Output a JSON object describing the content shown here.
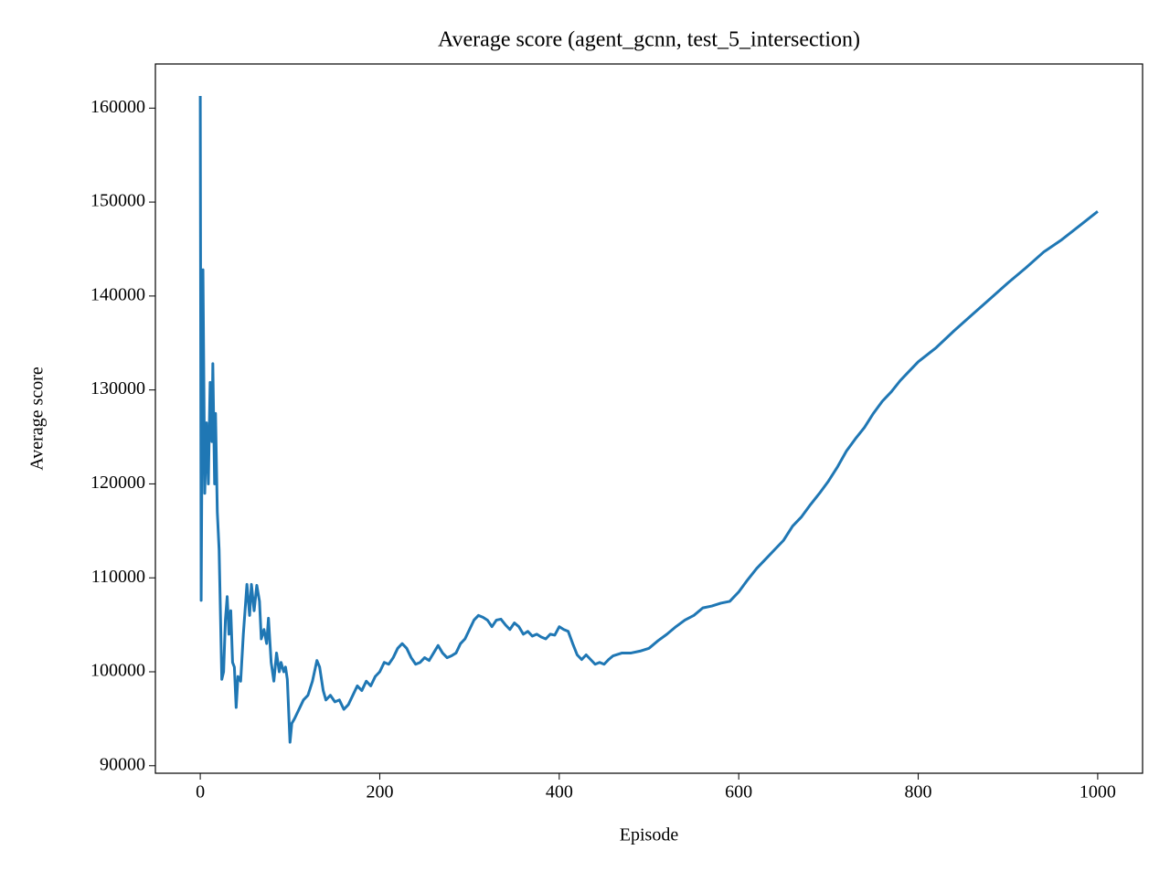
{
  "chart_data": {
    "type": "line",
    "title": "Average score (agent_gcnn, test_5_intersection)",
    "x_label": "Episode",
    "y_label": "Average score",
    "xlim": [
      -50,
      1050
    ],
    "ylim": [
      89200,
      164700
    ],
    "xticks": [
      0,
      200,
      400,
      600,
      800,
      1000
    ],
    "yticks": [
      90000,
      100000,
      110000,
      120000,
      130000,
      140000,
      150000,
      160000
    ],
    "series": [
      {
        "color": "#1f77b4",
        "x": [
          0,
          1,
          3,
          5,
          7,
          9,
          11,
          13,
          14,
          16,
          17,
          19,
          21,
          24,
          26,
          28,
          30,
          32,
          34,
          36,
          38,
          40,
          42,
          45,
          48,
          52,
          55,
          57,
          60,
          63,
          66,
          68,
          71,
          74,
          76,
          79,
          82,
          85,
          88,
          90,
          93,
          95,
          97,
          100,
          102,
          105,
          110,
          115,
          120,
          125,
          130,
          133,
          137,
          140,
          145,
          150,
          155,
          160,
          165,
          170,
          175,
          180,
          185,
          190,
          195,
          200,
          205,
          210,
          215,
          220,
          225,
          230,
          235,
          240,
          245,
          250,
          255,
          260,
          265,
          270,
          275,
          280,
          285,
          290,
          295,
          300,
          305,
          310,
          315,
          320,
          325,
          330,
          335,
          340,
          345,
          350,
          355,
          360,
          365,
          370,
          375,
          380,
          385,
          390,
          395,
          400,
          405,
          410,
          415,
          420,
          425,
          430,
          435,
          440,
          445,
          450,
          455,
          460,
          470,
          480,
          490,
          500,
          510,
          520,
          530,
          540,
          550,
          560,
          570,
          580,
          590,
          600,
          610,
          620,
          630,
          640,
          650,
          660,
          670,
          680,
          690,
          700,
          710,
          720,
          730,
          740,
          750,
          760,
          770,
          780,
          790,
          800,
          820,
          840,
          860,
          880,
          900,
          920,
          940,
          960,
          980,
          1000
        ],
        "values": [
          161300,
          107600,
          142800,
          119000,
          126500,
          120000,
          130800,
          124500,
          132800,
          120000,
          127500,
          117000,
          113000,
          99200,
          100000,
          105500,
          108000,
          104000,
          106500,
          101000,
          100500,
          96200,
          99500,
          99000,
          104000,
          109300,
          106000,
          109300,
          106500,
          109200,
          107500,
          103500,
          104500,
          103000,
          105700,
          101000,
          99000,
          102000,
          100000,
          101000,
          100000,
          100500,
          99200,
          92500,
          94500,
          95000,
          96000,
          97000,
          97500,
          99000,
          101200,
          100500,
          98000,
          97000,
          97500,
          96800,
          97000,
          96000,
          96500,
          97500,
          98500,
          98000,
          99000,
          98500,
          99500,
          100000,
          101000,
          100800,
          101500,
          102500,
          103000,
          102500,
          101500,
          100800,
          101000,
          101500,
          101200,
          102000,
          102800,
          102000,
          101500,
          101700,
          102000,
          103000,
          103500,
          104500,
          105500,
          106000,
          105800,
          105500,
          104800,
          105500,
          105600,
          105000,
          104500,
          105200,
          104800,
          104000,
          104300,
          103800,
          104000,
          103700,
          103500,
          104000,
          103900,
          104800,
          104500,
          104300,
          103000,
          101800,
          101300,
          101800,
          101300,
          100800,
          101000,
          100800,
          101300,
          101700,
          102000,
          102000,
          102200,
          102500,
          103300,
          104000,
          104800,
          105500,
          106000,
          106800,
          107000,
          107300,
          107500,
          108500,
          109800,
          111000,
          112000,
          113000,
          114000,
          115500,
          116500,
          117800,
          119000,
          120300,
          121800,
          123500,
          124800,
          126000,
          127500,
          128800,
          129800,
          131000,
          132000,
          133000,
          134500,
          136300,
          138000,
          139700,
          141400,
          143000,
          144700,
          146000,
          147500,
          149000
        ]
      }
    ]
  }
}
